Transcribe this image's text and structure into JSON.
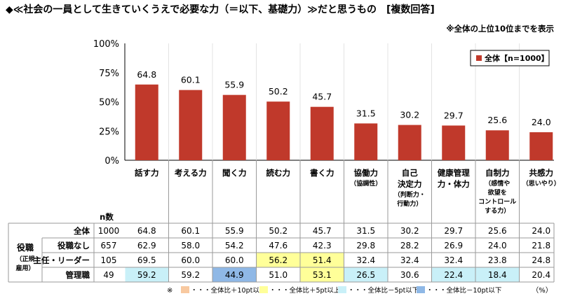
{
  "title": "◆≪社会の一員として生きていくうえで必要な力（＝以下、基礎力）≫だと思うもの　[複数回答]",
  "note": "※全体の上位10位までを表示",
  "chart_data": {
    "type": "bar",
    "categories": [
      "話す力",
      "考える力",
      "聞く力",
      "読む力",
      "書く力",
      "協働力",
      "自己決定力",
      "健康管理力・体力",
      "自制力",
      "共感力"
    ],
    "category_lines": [
      [
        "話す力"
      ],
      [
        "考える力"
      ],
      [
        "聞く力"
      ],
      [
        "読む力"
      ],
      [
        "書く力"
      ],
      [
        "協働力"
      ],
      [
        "自己",
        "決定力"
      ],
      [
        "健康管理",
        "力・体力"
      ],
      [
        "自制力"
      ],
      [
        "共感力"
      ]
    ],
    "category_sub": [
      [],
      [],
      [],
      [],
      [],
      [
        "（協調性）"
      ],
      [
        "（判断力・",
        "行動力）"
      ],
      [],
      [
        "（感情や",
        "欲望を",
        "コントロール",
        "する力）"
      ],
      [
        "（思いやり）"
      ]
    ],
    "series": [
      {
        "name": "全体【n=1000】",
        "values": [
          64.8,
          60.1,
          55.9,
          50.2,
          45.7,
          31.5,
          30.2,
          29.7,
          25.6,
          24.0
        ],
        "color": "#c0392b"
      }
    ],
    "yticks": [
      "0%",
      "25%",
      "50%",
      "75%",
      "100%"
    ],
    "ylim": [
      0,
      100
    ],
    "legend_position": "top-right",
    "grid": false
  },
  "table": {
    "n_header": "n数",
    "group_label": [
      "役職",
      "（正規",
      "雇用）"
    ],
    "rows": [
      {
        "label": "全体",
        "n": "1000",
        "values": [
          "64.8",
          "60.1",
          "55.9",
          "50.2",
          "45.7",
          "31.5",
          "30.2",
          "29.7",
          "25.6",
          "24.0"
        ],
        "hl": [
          null,
          null,
          null,
          null,
          null,
          null,
          null,
          null,
          null,
          null
        ]
      },
      {
        "label": "役職なし",
        "n": "657",
        "values": [
          "62.9",
          "58.0",
          "54.2",
          "47.6",
          "42.3",
          "29.8",
          "28.2",
          "26.9",
          "24.0",
          "21.8"
        ],
        "hl": [
          null,
          null,
          null,
          null,
          null,
          null,
          null,
          null,
          null,
          null
        ]
      },
      {
        "label": "主任・リーダー",
        "n": "105",
        "values": [
          "69.5",
          "60.0",
          "60.0",
          "56.2",
          "51.4",
          "32.4",
          "32.4",
          "32.4",
          "23.8",
          "24.8"
        ],
        "hl": [
          null,
          null,
          null,
          "y",
          "y",
          null,
          null,
          null,
          null,
          null
        ]
      },
      {
        "label": "管理職",
        "n": "49",
        "values": [
          "59.2",
          "59.2",
          "44.9",
          "51.0",
          "53.1",
          "26.5",
          "30.6",
          "22.4",
          "18.4",
          "20.4"
        ],
        "hl": [
          "c",
          null,
          "b",
          null,
          "y",
          "c",
          null,
          "c",
          "c",
          null
        ]
      }
    ]
  },
  "footer": {
    "mark": "※",
    "items": [
      {
        "label": "・・・全体比＋10pt以上",
        "color": "#f8c9a0"
      },
      {
        "label": "・・・全体比＋5pt以上",
        "color": "#ffff99"
      },
      {
        "label": "・・・全体比－5pt以下",
        "color": "#c9f0f8"
      },
      {
        "label": "・・・全体比－10pt以下",
        "color": "#8fb8e6"
      }
    ],
    "unit": "（%）"
  }
}
